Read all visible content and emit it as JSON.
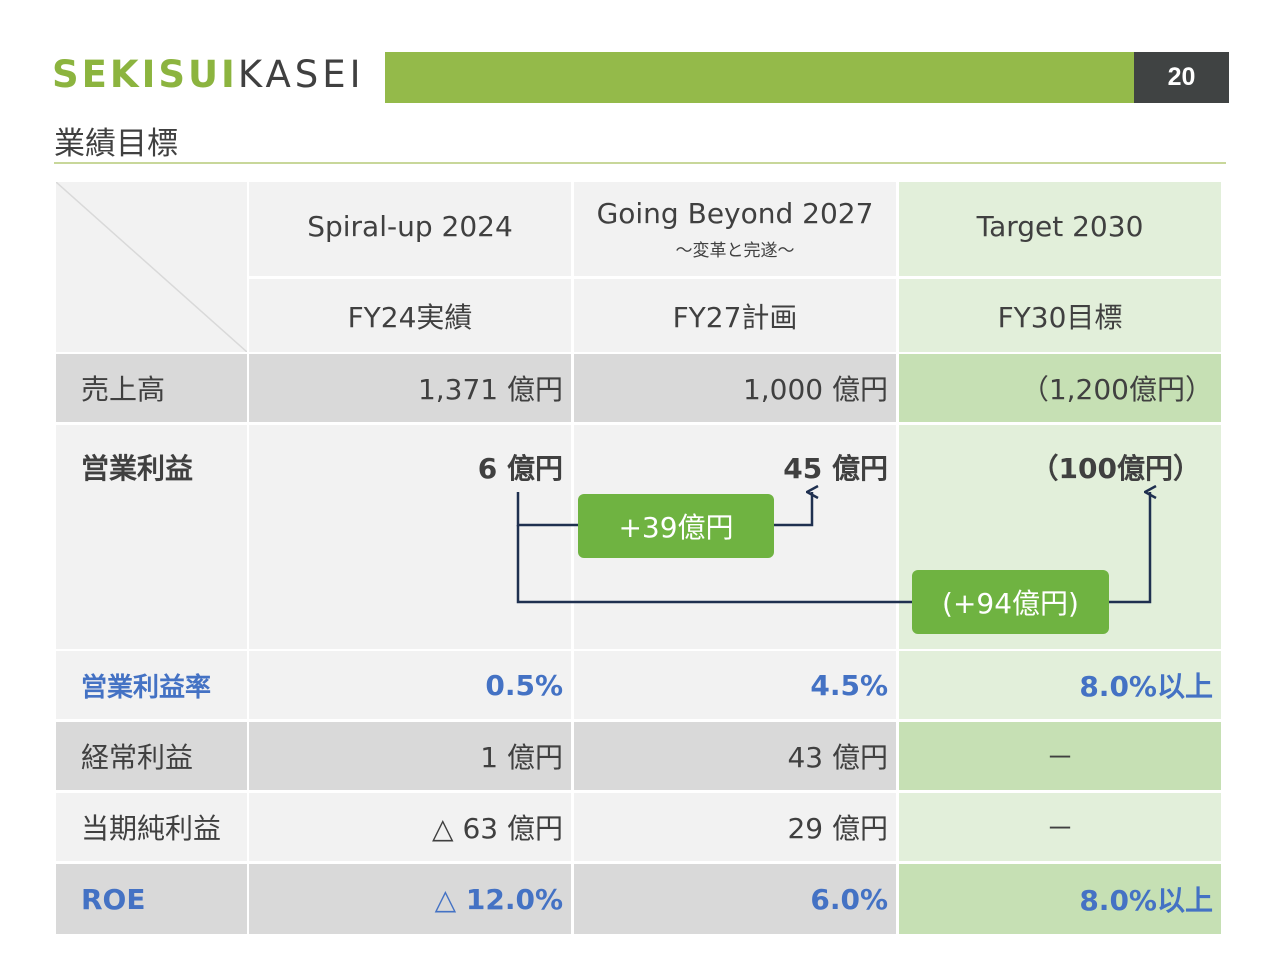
{
  "header": {
    "logo_part1": "SEKISUI",
    "logo_part2": "KASEI",
    "page_number": "20",
    "title": "業績目標"
  },
  "table": {
    "columns": [
      {
        "name": "Spiral-up 2024",
        "sub": "",
        "period": "FY24実績"
      },
      {
        "name": "Going Beyond 2027",
        "sub": "～変革と完遂～",
        "period": "FY27計画"
      },
      {
        "name": "Target 2030",
        "sub": "",
        "period": "FY30目標"
      }
    ],
    "rows": [
      {
        "label": "売上高",
        "values": [
          "1,371 億円",
          "1,000 億円",
          "（1,200億円）"
        ]
      },
      {
        "label": "営業利益",
        "values": [
          "6 億円",
          "45 億円",
          "（100億円）"
        ]
      },
      {
        "label": "営業利益率",
        "values": [
          "0.5%",
          "4.5%",
          "8.0%以上"
        ]
      },
      {
        "label": "経常利益",
        "values": [
          "1 億円",
          "43 億円",
          "－"
        ]
      },
      {
        "label": "当期純利益",
        "values": [
          "△ 63 億円",
          "29 億円",
          "－"
        ]
      },
      {
        "label": "ROE",
        "values": [
          "△ 12.0%",
          "6.0%",
          "8.0%以上"
        ]
      }
    ],
    "increase_to_fy27": "+39億円",
    "increase_to_fy30": "(+94億円)"
  },
  "colors": {
    "brand_green": "#8cb43f",
    "dark": "#404343",
    "accent_blue": "#4472c4",
    "badge_green": "#6fb341"
  }
}
